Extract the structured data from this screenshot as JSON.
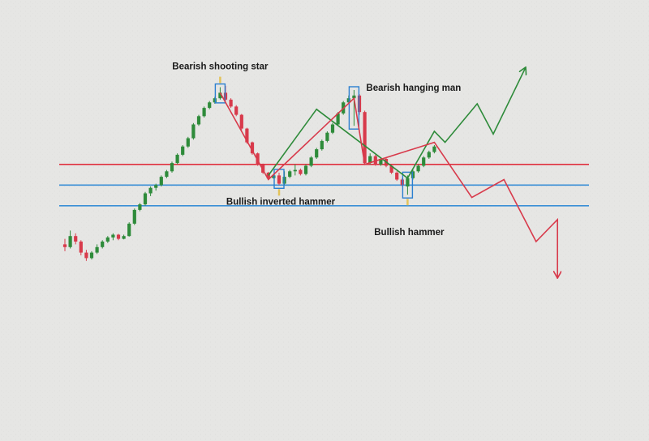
{
  "chart_data": {
    "type": "candlestick",
    "title": "",
    "xlabel": "",
    "ylabel": "",
    "ylim": [
      0,
      100
    ],
    "grid": false,
    "colors": {
      "bullish": "#2e8b3a",
      "bearish": "#d83a4b",
      "resistance": "#e0303f",
      "support": "#3a8fd6",
      "pattern_box": "#2b7fd0",
      "pattern_marker": "#e3c35a",
      "background": "#e6e6e4"
    },
    "levels": [
      {
        "role": "resistance",
        "value": 68,
        "color": "#e0303f"
      },
      {
        "role": "support",
        "value": 60.5,
        "color": "#3a8fd6"
      },
      {
        "role": "support",
        "value": 53,
        "color": "#3a8fd6"
      }
    ],
    "candles": [
      [
        0,
        39,
        41,
        36.5,
        38
      ],
      [
        1,
        38,
        44,
        37.5,
        42
      ],
      [
        2,
        42,
        43,
        39,
        40
      ],
      [
        3,
        40,
        40.5,
        35,
        36
      ],
      [
        4,
        36,
        37,
        33,
        34
      ],
      [
        5,
        34,
        36.5,
        33.5,
        36
      ],
      [
        6,
        36,
        39,
        35.5,
        38
      ],
      [
        7,
        38,
        40.5,
        37.5,
        40
      ],
      [
        8,
        40,
        42,
        39.5,
        41.5
      ],
      [
        9,
        41.5,
        43,
        40.5,
        42.5
      ],
      [
        10,
        42.5,
        42.8,
        40.5,
        41
      ],
      [
        11,
        41,
        42.5,
        40.8,
        42
      ],
      [
        12,
        42,
        47,
        41.8,
        46.5
      ],
      [
        13,
        46.5,
        52,
        46,
        51.5
      ],
      [
        14,
        51.5,
        54,
        51,
        53.5
      ],
      [
        15,
        53.5,
        58,
        53,
        57.5
      ],
      [
        16,
        57.5,
        60,
        56.5,
        59.5
      ],
      [
        17,
        59.5,
        61,
        58.5,
        60.5
      ],
      [
        18,
        60.5,
        64,
        60,
        63.5
      ],
      [
        19,
        63.5,
        66,
        63,
        65.5
      ],
      [
        20,
        65.5,
        69,
        65,
        68.5
      ],
      [
        21,
        68.5,
        72,
        68,
        71.5
      ],
      [
        22,
        71.5,
        75,
        71,
        74.5
      ],
      [
        23,
        74.5,
        78,
        74,
        77.5
      ],
      [
        24,
        77.5,
        83,
        77,
        82.5
      ],
      [
        25,
        82.5,
        86,
        82,
        85.5
      ],
      [
        26,
        85.5,
        89,
        85,
        88.5
      ],
      [
        27,
        88.5,
        91,
        88,
        90.5
      ],
      [
        28,
        90.5,
        92.5,
        90,
        92
      ],
      [
        29,
        92,
        96,
        91.5,
        94
      ],
      [
        30,
        94,
        96.5,
        91,
        91.5
      ],
      [
        31,
        91.5,
        92,
        88.5,
        89
      ],
      [
        32,
        89,
        89.5,
        85.5,
        86
      ],
      [
        33,
        86,
        86.3,
        80.5,
        81
      ],
      [
        34,
        81,
        81.3,
        75.5,
        76
      ],
      [
        35,
        76,
        76.3,
        71.5,
        72
      ],
      [
        36,
        72,
        72.3,
        67.5,
        68
      ],
      [
        37,
        68,
        68.3,
        64.5,
        65
      ],
      [
        38,
        65,
        65.3,
        62.5,
        63
      ],
      [
        39,
        63,
        64.5,
        62.8,
        64
      ],
      [
        40,
        64,
        65,
        60.5,
        61
      ],
      [
        41,
        61,
        65.5,
        60.5,
        63.5
      ],
      [
        42,
        63.5,
        66,
        63,
        65.5
      ],
      [
        43,
        65.5,
        68,
        64,
        66
      ],
      [
        44,
        66,
        66.5,
        64,
        64.5
      ],
      [
        45,
        64.5,
        68,
        64,
        67.5
      ],
      [
        46,
        67.5,
        71,
        67,
        70.5
      ],
      [
        47,
        70.5,
        74,
        70,
        73.5
      ],
      [
        48,
        73.5,
        77,
        73,
        76.5
      ],
      [
        49,
        76.5,
        80,
        76,
        79.5
      ],
      [
        50,
        79.5,
        83,
        79,
        82.5
      ],
      [
        51,
        82.5,
        87,
        82,
        86.5
      ],
      [
        52,
        86.5,
        91,
        86,
        90.5
      ],
      [
        53,
        90.5,
        93,
        90,
        92
      ],
      [
        54,
        92,
        95,
        82,
        93
      ],
      [
        55,
        93,
        93.5,
        86,
        87
      ],
      [
        56,
        87,
        87.5,
        68,
        68.5
      ],
      [
        57,
        68.5,
        72,
        68,
        71
      ],
      [
        58,
        71,
        71.5,
        67.5,
        68
      ],
      [
        59,
        68,
        70.5,
        67.5,
        70
      ],
      [
        60,
        70,
        70.5,
        67,
        67.5
      ],
      [
        61,
        67.5,
        68,
        64.5,
        65
      ],
      [
        62,
        65,
        65.5,
        62,
        62.5
      ],
      [
        63,
        62.5,
        63,
        60,
        60.5
      ],
      [
        64,
        60,
        64,
        57,
        63
      ],
      [
        65,
        63,
        66,
        62.5,
        65.5
      ],
      [
        66,
        65.5,
        68,
        65,
        67.5
      ],
      [
        67,
        67.5,
        71,
        67,
        70.5
      ],
      [
        68,
        70.5,
        73,
        70,
        72.5
      ],
      [
        69,
        72.5,
        75,
        72,
        74.5
      ]
    ],
    "annotations": [
      {
        "text": "Bearish shooting star",
        "candle": 29,
        "position": "above"
      },
      {
        "text": "Bearish hanging man",
        "candle": 54,
        "position": "right"
      },
      {
        "text": "Bullish inverted hammer",
        "candle": 40,
        "position": "below"
      },
      {
        "text": "Bullish hammer",
        "candle": 64,
        "position": "below"
      }
    ],
    "projected_paths": [
      {
        "name": "",
        "color": "#2e8b3a",
        "points": [
          [
            38,
            64
          ],
          [
            47,
            88
          ],
          [
            64,
            63
          ],
          [
            69,
            80
          ],
          [
            71,
            76
          ],
          [
            77,
            90
          ],
          [
            80,
            79
          ],
          [
            86,
            103
          ]
        ]
      },
      {
        "name": "",
        "color": "#d83a4b",
        "points": [
          [
            29,
            94
          ],
          [
            38,
            62.5
          ],
          [
            54,
            92
          ],
          [
            56,
            68
          ],
          [
            69,
            76
          ],
          [
            76,
            56
          ],
          [
            82,
            62.5
          ],
          [
            88,
            40
          ],
          [
            92,
            48
          ],
          [
            92,
            27
          ]
        ]
      }
    ]
  }
}
